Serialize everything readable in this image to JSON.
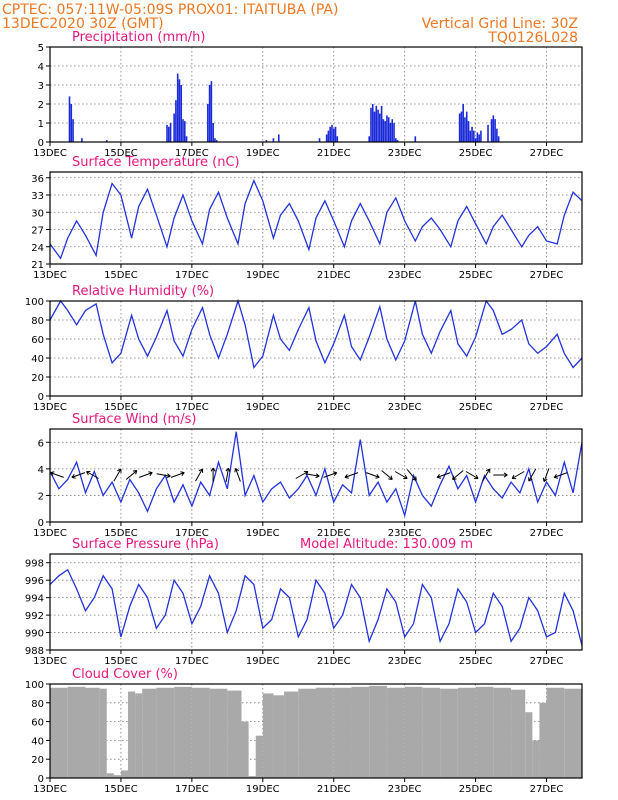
{
  "header": {
    "line1_left": "CPTEC:   057:11W-05:09S   PROX01: ITAITUBA (PA)",
    "line2_left": "13DEC2020 30Z (GMT)",
    "line2_right": "Vertical Grid Line: 30Z",
    "line3_right": "TQ0126L028"
  },
  "colors": {
    "header": "#ee7722",
    "panel_title": "#e8167e",
    "series": "#2233dd",
    "cloud": "#a9a9a9"
  },
  "chart_data": [
    {
      "id": "precip",
      "type": "bar",
      "title": "Precipitation (mm/h)",
      "ylim": [
        0,
        5
      ],
      "yticks": [
        0,
        1,
        2,
        3,
        4,
        5
      ],
      "xticks": [
        "13DEC",
        "15DEC",
        "17DEC",
        "19DEC",
        "21DEC",
        "23DEC",
        "25DEC",
        "27DEC"
      ],
      "xlim_days": [
        0,
        15
      ],
      "x_days": [
        0.55,
        0.6,
        0.65,
        0.9,
        1.6,
        3.3,
        3.35,
        3.4,
        3.5,
        3.55,
        3.6,
        3.65,
        3.7,
        3.75,
        3.8,
        3.85,
        4.45,
        4.5,
        4.55,
        4.6,
        4.65,
        4.7,
        6.1,
        6.3,
        6.45,
        7.6,
        7.8,
        7.85,
        7.9,
        7.95,
        8.0,
        8.05,
        8.1,
        9.0,
        9.05,
        9.1,
        9.15,
        9.2,
        9.25,
        9.3,
        9.35,
        9.4,
        9.45,
        9.5,
        9.55,
        9.6,
        9.65,
        9.7,
        9.75,
        9.8,
        10.3,
        11.55,
        11.6,
        11.65,
        11.7,
        11.75,
        11.8,
        11.85,
        11.9,
        11.95,
        12.0,
        12.05,
        12.1,
        12.15,
        12.35,
        12.45,
        12.5,
        12.55,
        12.6,
        12.65
      ],
      "values": [
        2.4,
        2.0,
        1.2,
        0.2,
        0.1,
        0.9,
        0.8,
        1.0,
        1.5,
        2.2,
        3.6,
        3.3,
        3.0,
        1.2,
        1.1,
        0.3,
        2.0,
        3.0,
        3.2,
        1.0,
        0.2,
        0.1,
        0.1,
        0.2,
        0.4,
        0.2,
        0.4,
        0.6,
        0.8,
        0.9,
        0.7,
        0.8,
        0.3,
        0.3,
        1.8,
        2.0,
        1.6,
        1.9,
        1.7,
        1.5,
        1.9,
        1.2,
        1.1,
        1.4,
        1.3,
        1.0,
        1.2,
        1.0,
        0.2,
        0.1,
        0.3,
        1.5,
        1.6,
        2.0,
        1.3,
        1.6,
        1.1,
        0.6,
        0.8,
        0.6,
        0.2,
        0.5,
        0.4,
        0.6,
        0.9,
        1.2,
        1.4,
        1.2,
        0.7,
        0.3
      ]
    },
    {
      "id": "temp",
      "type": "line",
      "title": "Surface Temperature (nC)",
      "ylim": [
        21,
        37
      ],
      "yticks": [
        21,
        24,
        27,
        30,
        33,
        36
      ],
      "xticks": [
        "13DEC",
        "15DEC",
        "17DEC",
        "19DEC",
        "21DEC",
        "23DEC",
        "25DEC",
        "27DEC"
      ],
      "xlim_days": [
        0,
        15
      ],
      "x_days": [
        0,
        0.3,
        0.5,
        0.75,
        1.0,
        1.3,
        1.5,
        1.75,
        2.0,
        2.3,
        2.5,
        2.75,
        3.0,
        3.3,
        3.5,
        3.75,
        4.0,
        4.3,
        4.5,
        4.75,
        5.0,
        5.3,
        5.5,
        5.75,
        6.0,
        6.3,
        6.5,
        6.75,
        7.0,
        7.3,
        7.5,
        7.75,
        8.0,
        8.3,
        8.5,
        8.75,
        9.0,
        9.3,
        9.5,
        9.75,
        10.0,
        10.3,
        10.5,
        10.75,
        11.0,
        11.3,
        11.5,
        11.75,
        12.0,
        12.3,
        12.5,
        12.75,
        13.0,
        13.3,
        13.5,
        13.75,
        14.0,
        14.3,
        14.5,
        14.75,
        15.0
      ],
      "values": [
        24.5,
        22.0,
        25.5,
        28.5,
        26.0,
        22.5,
        30.0,
        35.0,
        33.0,
        25.5,
        31.0,
        34.0,
        29.5,
        24.0,
        29.0,
        33.0,
        28.5,
        24.5,
        30.5,
        33.5,
        29.0,
        24.5,
        31.5,
        35.5,
        32.0,
        25.5,
        29.5,
        31.5,
        28.5,
        23.5,
        29.0,
        32.0,
        28.5,
        24.0,
        28.5,
        31.5,
        28.5,
        24.5,
        30.0,
        32.5,
        28.5,
        25.0,
        27.5,
        29.0,
        27.0,
        24.0,
        28.5,
        31.0,
        28.0,
        24.5,
        27.5,
        29.5,
        27.0,
        24.0,
        26.0,
        27.5,
        25.0,
        24.5,
        29.5,
        33.5,
        32.0
      ]
    },
    {
      "id": "rh",
      "type": "line",
      "title": "Relative Humidity (%)",
      "ylim": [
        0,
        100
      ],
      "yticks": [
        0,
        20,
        40,
        60,
        80,
        100
      ],
      "xticks": [
        "13DEC",
        "15DEC",
        "17DEC",
        "19DEC",
        "21DEC",
        "23DEC",
        "25DEC",
        "27DEC"
      ],
      "xlim_days": [
        0,
        15
      ],
      "x_days": [
        0,
        0.3,
        0.5,
        0.75,
        1.0,
        1.3,
        1.5,
        1.75,
        2.0,
        2.3,
        2.5,
        2.75,
        3.0,
        3.3,
        3.5,
        3.75,
        4.0,
        4.3,
        4.5,
        4.75,
        5.0,
        5.3,
        5.5,
        5.75,
        6.0,
        6.3,
        6.5,
        6.75,
        7.0,
        7.3,
        7.5,
        7.75,
        8.0,
        8.3,
        8.5,
        8.75,
        9.0,
        9.3,
        9.5,
        9.75,
        10.0,
        10.3,
        10.5,
        10.75,
        11.0,
        11.3,
        11.5,
        11.75,
        12.0,
        12.3,
        12.5,
        12.75,
        13.0,
        13.3,
        13.5,
        13.75,
        14.0,
        14.3,
        14.5,
        14.75,
        15.0
      ],
      "values": [
        80,
        100,
        90,
        75,
        90,
        97,
        65,
        35,
        45,
        85,
        60,
        42,
        62,
        90,
        58,
        42,
        70,
        93,
        65,
        40,
        65,
        100,
        75,
        30,
        42,
        85,
        60,
        48,
        70,
        93,
        58,
        35,
        55,
        85,
        52,
        38,
        62,
        94,
        60,
        38,
        58,
        100,
        65,
        45,
        68,
        90,
        55,
        42,
        62,
        100,
        90,
        65,
        70,
        80,
        55,
        45,
        52,
        65,
        45,
        30,
        40
      ]
    },
    {
      "id": "wind",
      "type": "line",
      "title": "Surface Wind (m/s)",
      "ylim": [
        0,
        7
      ],
      "yticks": [
        0,
        2,
        4,
        6
      ],
      "xticks": [
        "13DEC",
        "15DEC",
        "17DEC",
        "19DEC",
        "21DEC",
        "23DEC",
        "25DEC",
        "27DEC"
      ],
      "xlim_days": [
        0,
        15
      ],
      "x_days": [
        0,
        0.25,
        0.5,
        0.75,
        1.0,
        1.25,
        1.5,
        1.75,
        2.0,
        2.25,
        2.5,
        2.75,
        3.0,
        3.25,
        3.5,
        3.75,
        4.0,
        4.25,
        4.5,
        4.75,
        5.0,
        5.25,
        5.5,
        5.75,
        6.0,
        6.25,
        6.5,
        6.75,
        7.0,
        7.25,
        7.5,
        7.75,
        8.0,
        8.25,
        8.5,
        8.75,
        9.0,
        9.25,
        9.5,
        9.75,
        10.0,
        10.25,
        10.5,
        10.75,
        11.0,
        11.25,
        11.5,
        11.75,
        12.0,
        12.25,
        12.5,
        12.75,
        13.0,
        13.25,
        13.5,
        13.75,
        14.0,
        14.25,
        14.5,
        14.75,
        15.0
      ],
      "values": [
        3.8,
        2.5,
        3.2,
        4.5,
        2.2,
        3.8,
        2.0,
        3.0,
        1.5,
        3.2,
        2.2,
        0.8,
        2.5,
        3.5,
        1.5,
        2.8,
        1.2,
        3.0,
        2.0,
        4.5,
        2.5,
        6.8,
        2.0,
        3.5,
        1.5,
        2.5,
        3.0,
        1.8,
        2.5,
        3.5,
        2.0,
        4.0,
        1.5,
        2.8,
        2.2,
        6.2,
        2.0,
        3.0,
        1.5,
        2.5,
        0.5,
        3.5,
        2.0,
        1.2,
        2.8,
        4.2,
        2.5,
        3.5,
        1.5,
        3.5,
        2.5,
        1.8,
        3.0,
        2.2,
        4.0,
        1.5,
        3.0,
        2.0,
        4.5,
        2.2,
        6.0
      ],
      "vector_x_days": [
        0.2,
        0.8,
        1.2,
        1.9,
        2.3,
        2.7,
        3.2,
        3.6,
        4.2,
        4.6,
        5.0,
        5.3,
        7.1,
        7.4,
        7.9,
        8.5,
        9.1,
        9.5,
        9.9,
        10.2,
        11.1,
        11.5,
        11.9,
        12.3,
        12.7,
        13.2,
        13.6,
        14.0,
        14.4
      ],
      "vector_dirs_deg": [
        160,
        200,
        150,
        60,
        40,
        20,
        350,
        20,
        60,
        90,
        80,
        110,
        30,
        350,
        20,
        200,
        340,
        320,
        330,
        310,
        200,
        220,
        330,
        60,
        0,
        210,
        240,
        250,
        200
      ]
    },
    {
      "id": "pressure",
      "type": "line",
      "title": "Surface Pressure (hPa)",
      "annotation": "Model Altitude: 130.009 m",
      "ylim": [
        988,
        999
      ],
      "yticks": [
        988,
        990,
        992,
        994,
        996,
        998
      ],
      "xticks": [
        "13DEC",
        "15DEC",
        "17DEC",
        "19DEC",
        "21DEC",
        "23DEC",
        "25DEC",
        "27DEC"
      ],
      "xlim_days": [
        0,
        15
      ],
      "x_days": [
        0,
        0.25,
        0.5,
        0.75,
        1.0,
        1.25,
        1.5,
        1.75,
        2.0,
        2.25,
        2.5,
        2.75,
        3.0,
        3.25,
        3.5,
        3.75,
        4.0,
        4.25,
        4.5,
        4.75,
        5.0,
        5.25,
        5.5,
        5.75,
        6.0,
        6.25,
        6.5,
        6.75,
        7.0,
        7.25,
        7.5,
        7.75,
        8.0,
        8.25,
        8.5,
        8.75,
        9.0,
        9.25,
        9.5,
        9.75,
        10.0,
        10.25,
        10.5,
        10.75,
        11.0,
        11.25,
        11.5,
        11.75,
        12.0,
        12.25,
        12.5,
        12.75,
        13.0,
        13.25,
        13.5,
        13.75,
        14.0,
        14.25,
        14.5,
        14.75,
        15.0
      ],
      "values": [
        995.5,
        996.5,
        997.2,
        995.0,
        992.5,
        994.0,
        996.5,
        995.0,
        989.5,
        993.0,
        995.5,
        994.0,
        990.5,
        992.0,
        996.0,
        994.5,
        991.0,
        993.0,
        996.5,
        994.5,
        990.0,
        992.5,
        996.5,
        995.5,
        990.5,
        991.5,
        995.0,
        994.0,
        989.5,
        991.5,
        996.0,
        994.5,
        990.5,
        992.0,
        995.5,
        994.0,
        989.0,
        991.5,
        995.0,
        993.5,
        989.5,
        991.0,
        995.5,
        994.0,
        989.0,
        991.0,
        995.0,
        993.5,
        990.0,
        991.0,
        994.5,
        993.0,
        989.0,
        990.5,
        994.0,
        992.5,
        989.5,
        990.0,
        994.5,
        992.5,
        988.5
      ]
    },
    {
      "id": "cloud",
      "type": "bar",
      "title": "Cloud Cover (%)",
      "ylim": [
        0,
        100
      ],
      "yticks": [
        0,
        20,
        40,
        60,
        80,
        100
      ],
      "xticks": [
        "13DEC",
        "15DEC",
        "17DEC",
        "19DEC",
        "21DEC",
        "23DEC",
        "25DEC",
        "27DEC"
      ],
      "xlim_days": [
        0,
        15
      ],
      "x_days": [
        0,
        0.5,
        1.0,
        1.4,
        1.6,
        1.8,
        2.0,
        2.2,
        2.4,
        2.6,
        3.0,
        3.5,
        4.0,
        4.5,
        5.0,
        5.4,
        5.6,
        5.8,
        6.0,
        6.3,
        6.6,
        7.0,
        7.5,
        8.0,
        8.5,
        9.0,
        9.5,
        10.0,
        10.5,
        11.0,
        11.5,
        12.0,
        12.5,
        13.0,
        13.4,
        13.6,
        13.8,
        14.0,
        14.5,
        15.0
      ],
      "values": [
        96,
        97,
        96,
        95,
        5,
        3,
        8,
        92,
        90,
        95,
        96,
        97,
        96,
        95,
        93,
        60,
        2,
        45,
        90,
        88,
        92,
        95,
        96,
        96,
        97,
        98,
        96,
        97,
        96,
        95,
        96,
        97,
        96,
        94,
        70,
        40,
        80,
        96,
        95,
        95
      ]
    }
  ]
}
